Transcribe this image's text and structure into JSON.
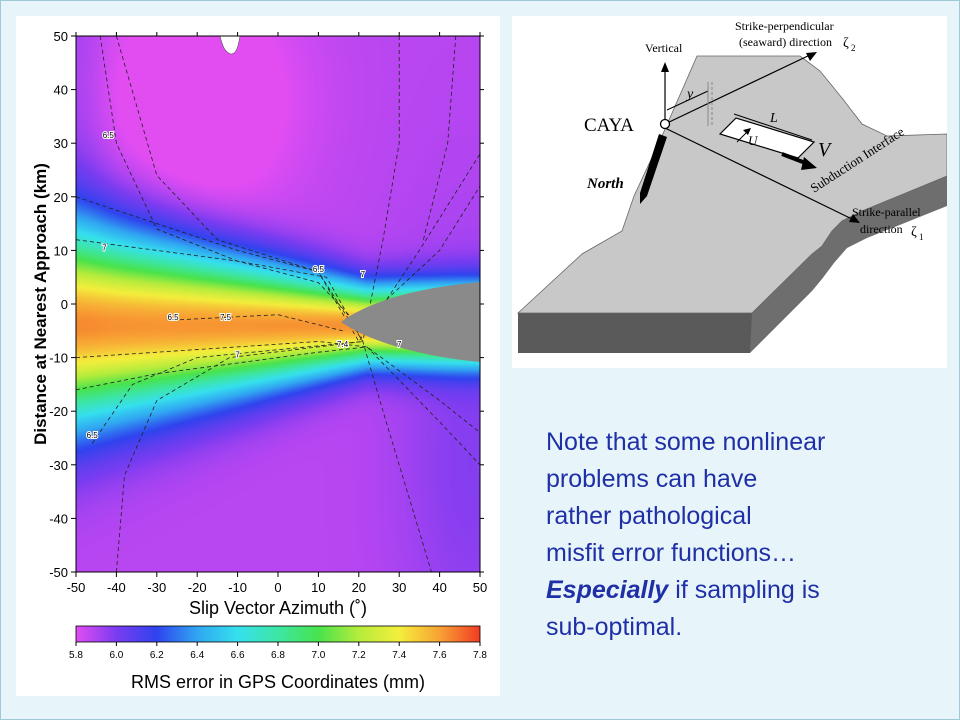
{
  "chart_data": {
    "type": "heatmap",
    "xlabel": "Slip Vector Azimuth (˚)",
    "ylabel": "Distance at Nearest Approach (km)",
    "xlim": [
      -50,
      50
    ],
    "ylim": [
      -50,
      50
    ],
    "xticks": [
      "-50",
      "-40",
      "-30",
      "-20",
      "-10",
      "0",
      "10",
      "20",
      "30",
      "40",
      "50"
    ],
    "yticks": [
      "50",
      "40",
      "30",
      "20",
      "10",
      "0",
      "-10",
      "-20",
      "-30",
      "-40",
      "-50"
    ],
    "colorbar": {
      "label": "RMS error in GPS Coordinates (mm)",
      "range": [
        5.8,
        7.8
      ],
      "ticks": [
        "5.8",
        "6.0",
        "6.2",
        "6.4",
        "6.6",
        "6.8",
        "7.0",
        "7.2",
        "7.4",
        "7.6",
        "7.8"
      ],
      "colormap": [
        "#e24df2",
        "#7a3cf0",
        "#2f43ee",
        "#30a6f2",
        "#36e0ee",
        "#3de6a4",
        "#48e34c",
        "#b4ec3c",
        "#f4ee3c",
        "#f8a234",
        "#f03c24"
      ]
    },
    "contour_labels": [
      "6.5",
      "7",
      "6.5",
      "7",
      "7.5",
      "7",
      "7.4",
      "6.5",
      "6.5",
      "7"
    ],
    "masked_color": "#8a8a8a"
  },
  "note": {
    "line1": "Note that some nonlinear",
    "line2": "problems can have",
    "line3": "rather pathological",
    "line4": "misfit error functions…",
    "emph": "Especially",
    "line5_rest": " if sampling is",
    "line6": "sub-optimal."
  },
  "diagram": {
    "strike_perp_line1": "Strike-perpendicular",
    "strike_perp_line2": "(seaward) direction",
    "zeta2": "ζ",
    "zeta2_sub": "2",
    "vertical": "Vertical",
    "y_label": "y",
    "caya": "CAYA",
    "L_label": "L",
    "U_label": "U",
    "V_label": "V",
    "north": "North",
    "interface": "Subduction Interface",
    "strike_par_line1": "Strike-parallel",
    "strike_par_line2": "direction",
    "zeta1": "ζ",
    "zeta1_sub": "1"
  }
}
